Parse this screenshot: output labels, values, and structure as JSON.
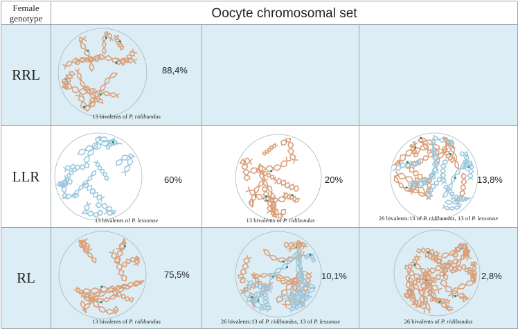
{
  "header": {
    "left_line1": "Female",
    "left_line2": "genotype",
    "title": "Oocyte chromosomal set"
  },
  "rows": [
    {
      "genotype": "RRL",
      "cells": [
        {
          "percent": "88,4%",
          "caption_pre": "13 bivalents of ",
          "caption_it1": "P. ridibundus",
          "caption_mid": "",
          "caption_it2": "",
          "mix": "R"
        },
        null,
        null
      ]
    },
    {
      "genotype": "LLR",
      "cells": [
        {
          "percent": "60%",
          "caption_pre": "13 bivalents of ",
          "caption_it1": "P. lessonae",
          "caption_mid": "",
          "caption_it2": "",
          "mix": "L"
        },
        {
          "percent": "20%",
          "caption_pre": "13 bivalents of ",
          "caption_it1": "P. ridibundus",
          "caption_mid": "",
          "caption_it2": "",
          "mix": "R"
        },
        {
          "percent": "13,8%",
          "caption_pre": "26 bivalents:13 of ",
          "caption_it1": "P. ridibundus",
          "caption_mid": ", 13 of ",
          "caption_it2": "P. lessonae",
          "mix": "RL"
        }
      ]
    },
    {
      "genotype": "RL",
      "cells": [
        {
          "percent": "75,5%",
          "caption_pre": "13 bivalents of ",
          "caption_it1": "P. ridibundus",
          "caption_mid": "",
          "caption_it2": "",
          "mix": "R"
        },
        {
          "percent": "10,1%",
          "caption_pre": "26 bivalents:13 of ",
          "caption_it1": "P. ridibundus",
          "caption_mid": ", 13 of ",
          "caption_it2": "P. lessonae",
          "mix": "RL"
        },
        {
          "percent": "2,8%",
          "caption_pre": "26 bivalents of ",
          "caption_it1": "P. ridibundus",
          "caption_mid": "",
          "caption_it2": "",
          "mix": "RR"
        }
      ]
    }
  ],
  "colors": {
    "row_shade": "#dcedf5",
    "ridibundus": "#d9a07a",
    "lessonae": "#9cc8de",
    "centromere": "#1e8a8a",
    "circle": "#a9b7bd"
  }
}
